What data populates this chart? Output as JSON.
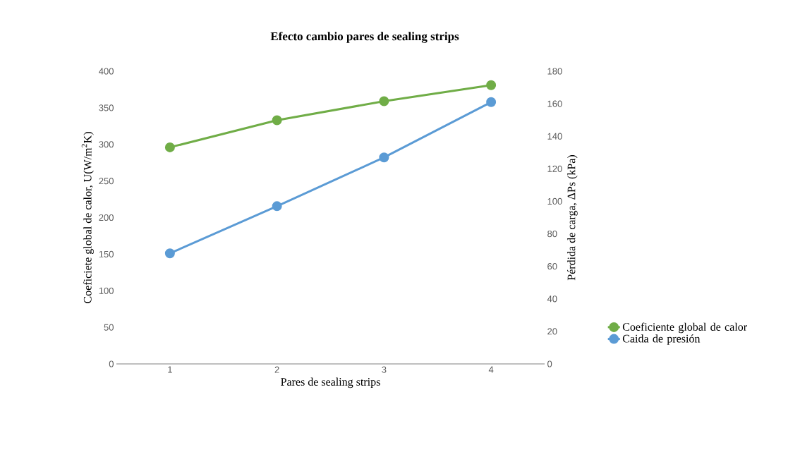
{
  "chart_data": {
    "type": "line",
    "title": "Efecto cambio pares de sealing strips",
    "xlabel": "Pares de sealing strips",
    "ylabel": "Coeficiete global de calor, U(W/m$^{2}$K)",
    "y2label": "Pérdida de carga, ΔPs (kPa)",
    "categories": [
      "1",
      "2",
      "3",
      "4"
    ],
    "series": [
      {
        "name": "Coeficiente global de calor",
        "color": "#70ad47",
        "values": [
          296,
          333,
          359,
          381
        ],
        "axis": "y"
      },
      {
        "name": "Caida de presión",
        "color": "#5b9bd5",
        "values": [
          68,
          97,
          127,
          161
        ],
        "axis": "y2"
      }
    ],
    "ylim": [
      0,
      400
    ],
    "yticks": [
      0,
      50,
      100,
      150,
      200,
      250,
      300,
      350,
      400
    ],
    "y2lim": [
      0,
      180
    ],
    "y2ticks": [
      0,
      20,
      40,
      60,
      80,
      100,
      120,
      140,
      160,
      180
    ],
    "grid": false,
    "legend": "right",
    "marker": "circle",
    "line_style": "solid"
  }
}
